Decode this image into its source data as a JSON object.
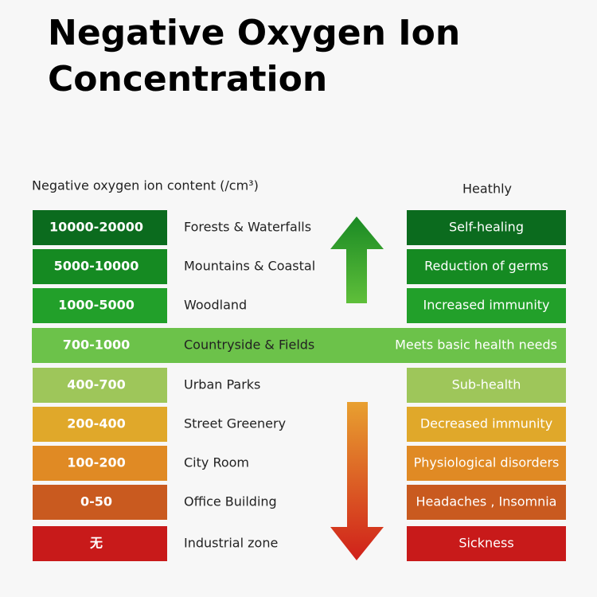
{
  "title": {
    "line1": "Negative Oxygen Ion",
    "line2": "Concentration"
  },
  "headers": {
    "left": "Negative oxygen ion content (/cm³)",
    "right": "Heathly"
  },
  "rows": [
    {
      "range": "10000-20000",
      "place": "Forests & Waterfalls",
      "health": "Self-healing"
    },
    {
      "range": "5000-10000",
      "place": "Mountains & Coastal",
      "health": "Reduction of germs"
    },
    {
      "range": "1000-5000",
      "place": "Woodland",
      "health": "Increased immunity"
    },
    {
      "range": "700-1000",
      "place": "Countryside & Fields",
      "health": "Meets basic health needs"
    },
    {
      "range": "400-700",
      "place": "Urban Parks",
      "health": "Sub-health"
    },
    {
      "range": "200-400",
      "place": "Street Greenery",
      "health": "Decreased immunity"
    },
    {
      "range": "100-200",
      "place": "City Room",
      "health": "Physiological disorders"
    },
    {
      "range": "0-50",
      "place": "Office Building",
      "health": "Headaches , Insomnia"
    },
    {
      "range": "无",
      "place": "Industrial zone",
      "health": "Sickness"
    }
  ]
}
